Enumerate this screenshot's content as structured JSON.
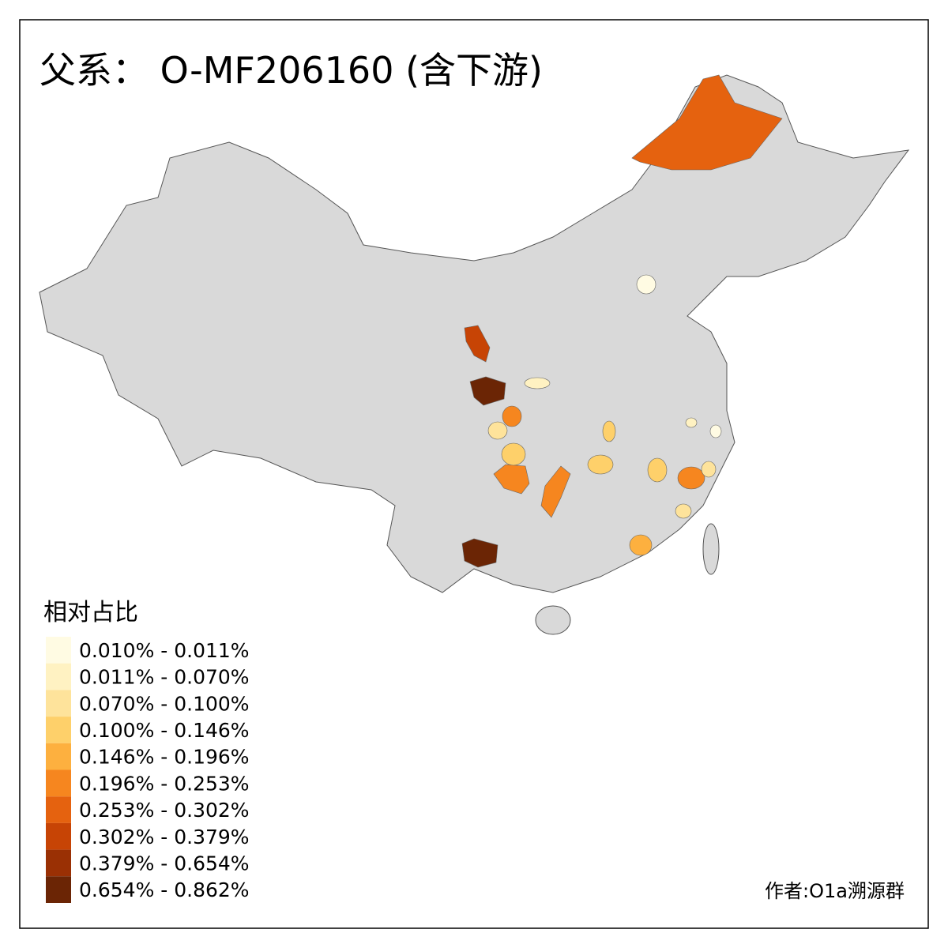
{
  "title": "父系： O-MF206160 (含下游)",
  "legend": {
    "title": "相对占比",
    "items": [
      {
        "label": "0.010% - 0.011%",
        "color": "#fffbe3"
      },
      {
        "label": "0.011% - 0.070%",
        "color": "#fff2c2"
      },
      {
        "label": "0.070% - 0.100%",
        "color": "#fee39b"
      },
      {
        "label": "0.100% - 0.146%",
        "color": "#fed06a"
      },
      {
        "label": "0.146% - 0.196%",
        "color": "#fdb03f"
      },
      {
        "label": "0.196% - 0.253%",
        "color": "#f6861f"
      },
      {
        "label": "0.253% - 0.302%",
        "color": "#e5620f"
      },
      {
        "label": "0.302% - 0.379%",
        "color": "#c74405"
      },
      {
        "label": "0.379% - 0.654%",
        "color": "#9a3004"
      },
      {
        "label": "0.654% - 0.862%",
        "color": "#6b2505"
      }
    ]
  },
  "credit": "作者:O1a溯源群"
}
